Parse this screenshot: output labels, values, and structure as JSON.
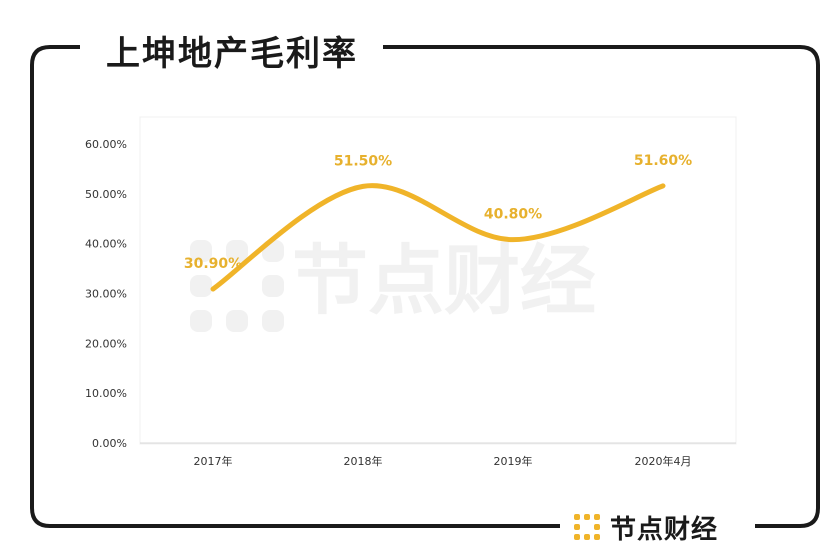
{
  "header": {
    "title": "上坤地产毛利率"
  },
  "brand": {
    "name": "节点财经"
  },
  "watermark": {
    "text": "节点财经"
  },
  "colors": {
    "line": "#F0B429",
    "label": "#E7B12E",
    "frame": "#1a1a1a",
    "watermark": "#f1f1f1",
    "logo": "#F0B429"
  },
  "chart_data": {
    "type": "line",
    "title": "上坤地产毛利率",
    "categories": [
      "2017年",
      "2018年",
      "2019年",
      "2020年4月"
    ],
    "series": [
      {
        "values": [
          30.9,
          51.5,
          40.8,
          51.6
        ],
        "labels": [
          "30.90%",
          "51.50%",
          "40.80%",
          "51.60%"
        ]
      }
    ],
    "ylim": [
      0,
      60
    ],
    "yticks": [
      "0.00%",
      "10.00%",
      "20.00%",
      "30.00%",
      "40.00%",
      "50.00%",
      "60.00%"
    ],
    "smooth": true,
    "grid": false,
    "legend": "none"
  }
}
